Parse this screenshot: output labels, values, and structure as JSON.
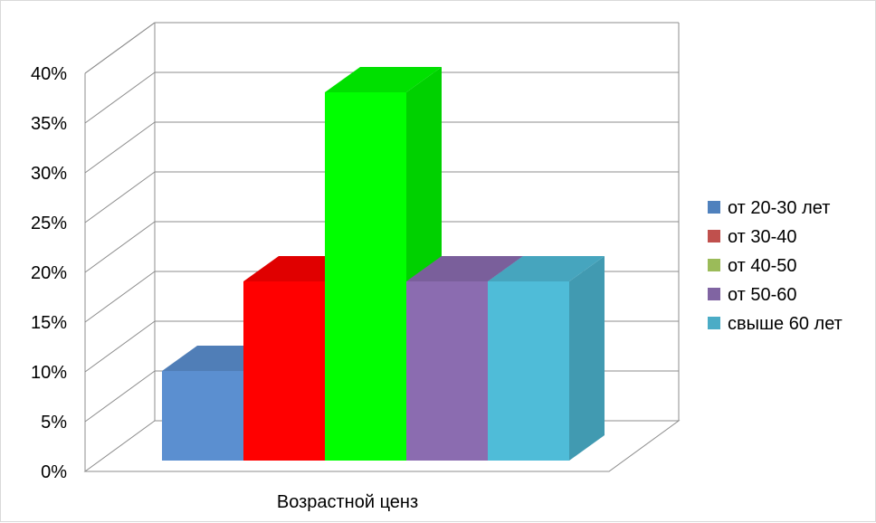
{
  "chart_data": {
    "type": "bar",
    "categories": [
      "Возрастной ценз"
    ],
    "series": [
      {
        "name": "от 20-30 лет",
        "values": [
          9
        ],
        "color": "#5b8fd0"
      },
      {
        "name": "от 30-40",
        "values": [
          18
        ],
        "color": "#ff0000"
      },
      {
        "name": "от 40-50",
        "values": [
          37
        ],
        "color": "#00ff00"
      },
      {
        "name": "от 50-60",
        "values": [
          18
        ],
        "color": "#8b6cb0"
      },
      {
        "name": "свыше 60 лет",
        "values": [
          18
        ],
        "color": "#4fbcd8"
      }
    ],
    "legend_colors": [
      "#4f81bd",
      "#c0504d",
      "#9bbb59",
      "#8064a2",
      "#4bacc6"
    ],
    "y_ticks": [
      "0%",
      "5%",
      "10%",
      "15%",
      "20%",
      "25%",
      "30%",
      "35%",
      "40%"
    ],
    "ylim": [
      0,
      40
    ],
    "grid": true,
    "legend_position": "right",
    "is_3d": true
  }
}
